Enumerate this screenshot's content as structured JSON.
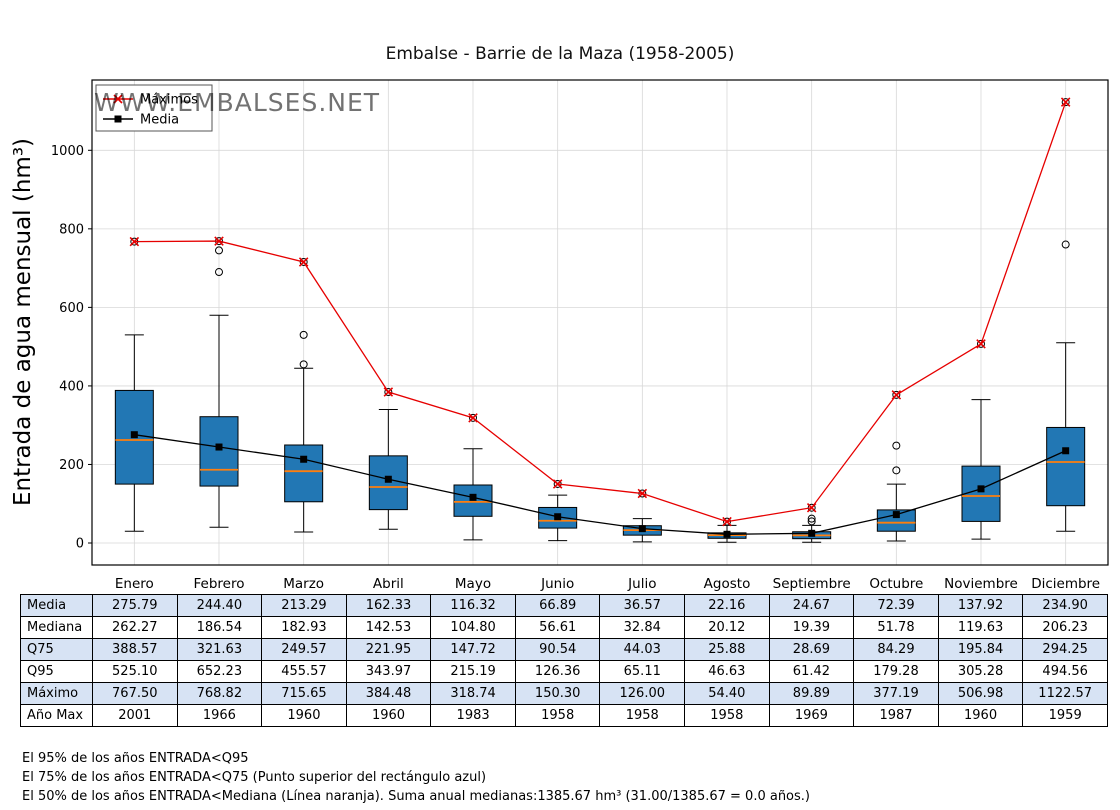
{
  "title": "Embalse - Barrie de la Maza (1958-2005)",
  "watermark": "WWW.EMBALSES.NET",
  "legend": [
    {
      "label": "Máximos",
      "marker": "x-icon",
      "color": "#e60000"
    },
    {
      "label": "Media",
      "marker": "square-icon",
      "color": "#000000"
    }
  ],
  "colors": {
    "box": "#2277b4",
    "median": "#ff7f0e",
    "max_line": "#e60000",
    "mean_line": "#000000",
    "ylabel": "#1f77b4",
    "watermark": "#8fb8d8",
    "grid": "#d8d8d8",
    "table_alt_row": "#d7e3f4"
  },
  "chart_data": {
    "type": "boxplot",
    "title": "Embalse - Barrie de la Maza (1958-2005)",
    "ylabel": "Entrada de agua mensual (hm³)",
    "xlabel": "",
    "grid": true,
    "legend_position": "upper left",
    "ylim": [
      -56,
      1179
    ],
    "yticks": [
      0,
      200,
      400,
      600,
      800,
      1000
    ],
    "categories": [
      "Enero",
      "Febrero",
      "Marzo",
      "Abril",
      "Mayo",
      "Junio",
      "Julio",
      "Agosto",
      "Septiembre",
      "Octubre",
      "Noviembre",
      "Diciembre"
    ],
    "series": [
      {
        "name": "Máximos",
        "values": [
          767.5,
          768.82,
          715.65,
          384.48,
          318.74,
          150.3,
          126.0,
          54.4,
          89.89,
          377.19,
          506.98,
          1122.57
        ]
      },
      {
        "name": "Media",
        "values": [
          275.79,
          244.4,
          213.29,
          162.33,
          116.32,
          66.89,
          36.57,
          22.16,
          24.67,
          72.39,
          137.92,
          234.9
        ]
      }
    ],
    "boxes": [
      {
        "month": "Enero",
        "whisker_low": 30,
        "q1": 150,
        "median": 262.27,
        "q3": 388.57,
        "whisker_high": 530,
        "outliers": [
          767.5
        ]
      },
      {
        "month": "Febrero",
        "whisker_low": 40,
        "q1": 145,
        "median": 186.54,
        "q3": 321.63,
        "whisker_high": 580,
        "outliers": [
          690,
          745,
          768.82
        ]
      },
      {
        "month": "Marzo",
        "whisker_low": 28,
        "q1": 105,
        "median": 182.93,
        "q3": 249.57,
        "whisker_high": 445,
        "outliers": [
          455,
          530,
          715.65
        ]
      },
      {
        "month": "Abril",
        "whisker_low": 35,
        "q1": 85,
        "median": 142.53,
        "q3": 221.95,
        "whisker_high": 340,
        "outliers": [
          384.48
        ]
      },
      {
        "month": "Mayo",
        "whisker_low": 8,
        "q1": 68,
        "median": 104.8,
        "q3": 147.72,
        "whisker_high": 240,
        "outliers": [
          318.74
        ]
      },
      {
        "month": "Junio",
        "whisker_low": 6,
        "q1": 38,
        "median": 56.61,
        "q3": 90.54,
        "whisker_high": 122,
        "outliers": [
          150.3
        ]
      },
      {
        "month": "Julio",
        "whisker_low": 3,
        "q1": 20,
        "median": 32.84,
        "q3": 44.03,
        "whisker_high": 62,
        "outliers": [
          126.0
        ]
      },
      {
        "month": "Agosto",
        "whisker_low": 2,
        "q1": 12,
        "median": 20.12,
        "q3": 25.88,
        "whisker_high": 45,
        "outliers": [
          54.4
        ]
      },
      {
        "month": "Septiembre",
        "whisker_low": 2,
        "q1": 11,
        "median": 19.39,
        "q3": 28.69,
        "whisker_high": 45,
        "outliers": [
          55,
          62,
          89.89
        ]
      },
      {
        "month": "Octubre",
        "whisker_low": 5,
        "q1": 30,
        "median": 51.78,
        "q3": 84.29,
        "whisker_high": 150,
        "outliers": [
          185,
          248,
          377.19
        ]
      },
      {
        "month": "Noviembre",
        "whisker_low": 10,
        "q1": 55,
        "median": 119.63,
        "q3": 195.84,
        "whisker_high": 365,
        "outliers": [
          506.98
        ]
      },
      {
        "month": "Diciembre",
        "whisker_low": 30,
        "q1": 95,
        "median": 206.23,
        "q3": 294.25,
        "whisker_high": 510,
        "outliers": [
          760,
          1122.57
        ]
      }
    ]
  },
  "table": {
    "rows": [
      {
        "label": "Media",
        "values": [
          "275.79",
          "244.40",
          "213.29",
          "162.33",
          "116.32",
          "66.89",
          "36.57",
          "22.16",
          "24.67",
          "72.39",
          "137.92",
          "234.90"
        ]
      },
      {
        "label": "Mediana",
        "values": [
          "262.27",
          "186.54",
          "182.93",
          "142.53",
          "104.80",
          "56.61",
          "32.84",
          "20.12",
          "19.39",
          "51.78",
          "119.63",
          "206.23"
        ]
      },
      {
        "label": "Q75",
        "values": [
          "388.57",
          "321.63",
          "249.57",
          "221.95",
          "147.72",
          "90.54",
          "44.03",
          "25.88",
          "28.69",
          "84.29",
          "195.84",
          "294.25"
        ]
      },
      {
        "label": "Q95",
        "values": [
          "525.10",
          "652.23",
          "455.57",
          "343.97",
          "215.19",
          "126.36",
          "65.11",
          "46.63",
          "61.42",
          "179.28",
          "305.28",
          "494.56"
        ]
      },
      {
        "label": "Máximo",
        "values": [
          "767.50",
          "768.82",
          "715.65",
          "384.48",
          "318.74",
          "150.30",
          "126.00",
          "54.40",
          "89.89",
          "377.19",
          "506.98",
          "1122.57"
        ]
      },
      {
        "label": "Año Max",
        "values": [
          "2001",
          "1966",
          "1960",
          "1960",
          "1983",
          "1958",
          "1958",
          "1958",
          "1969",
          "1987",
          "1960",
          "1959"
        ]
      }
    ]
  },
  "footnotes": [
    "El 95% de los años ENTRADA<Q95",
    "El 75% de los años ENTRADA<Q75 (Punto superior del rectángulo azul)",
    "El 50% de los años ENTRADA<Mediana (Línea naranja). Suma anual medianas:1385.67 hm³ (31.00/1385.67 = 0.0 años.)"
  ]
}
